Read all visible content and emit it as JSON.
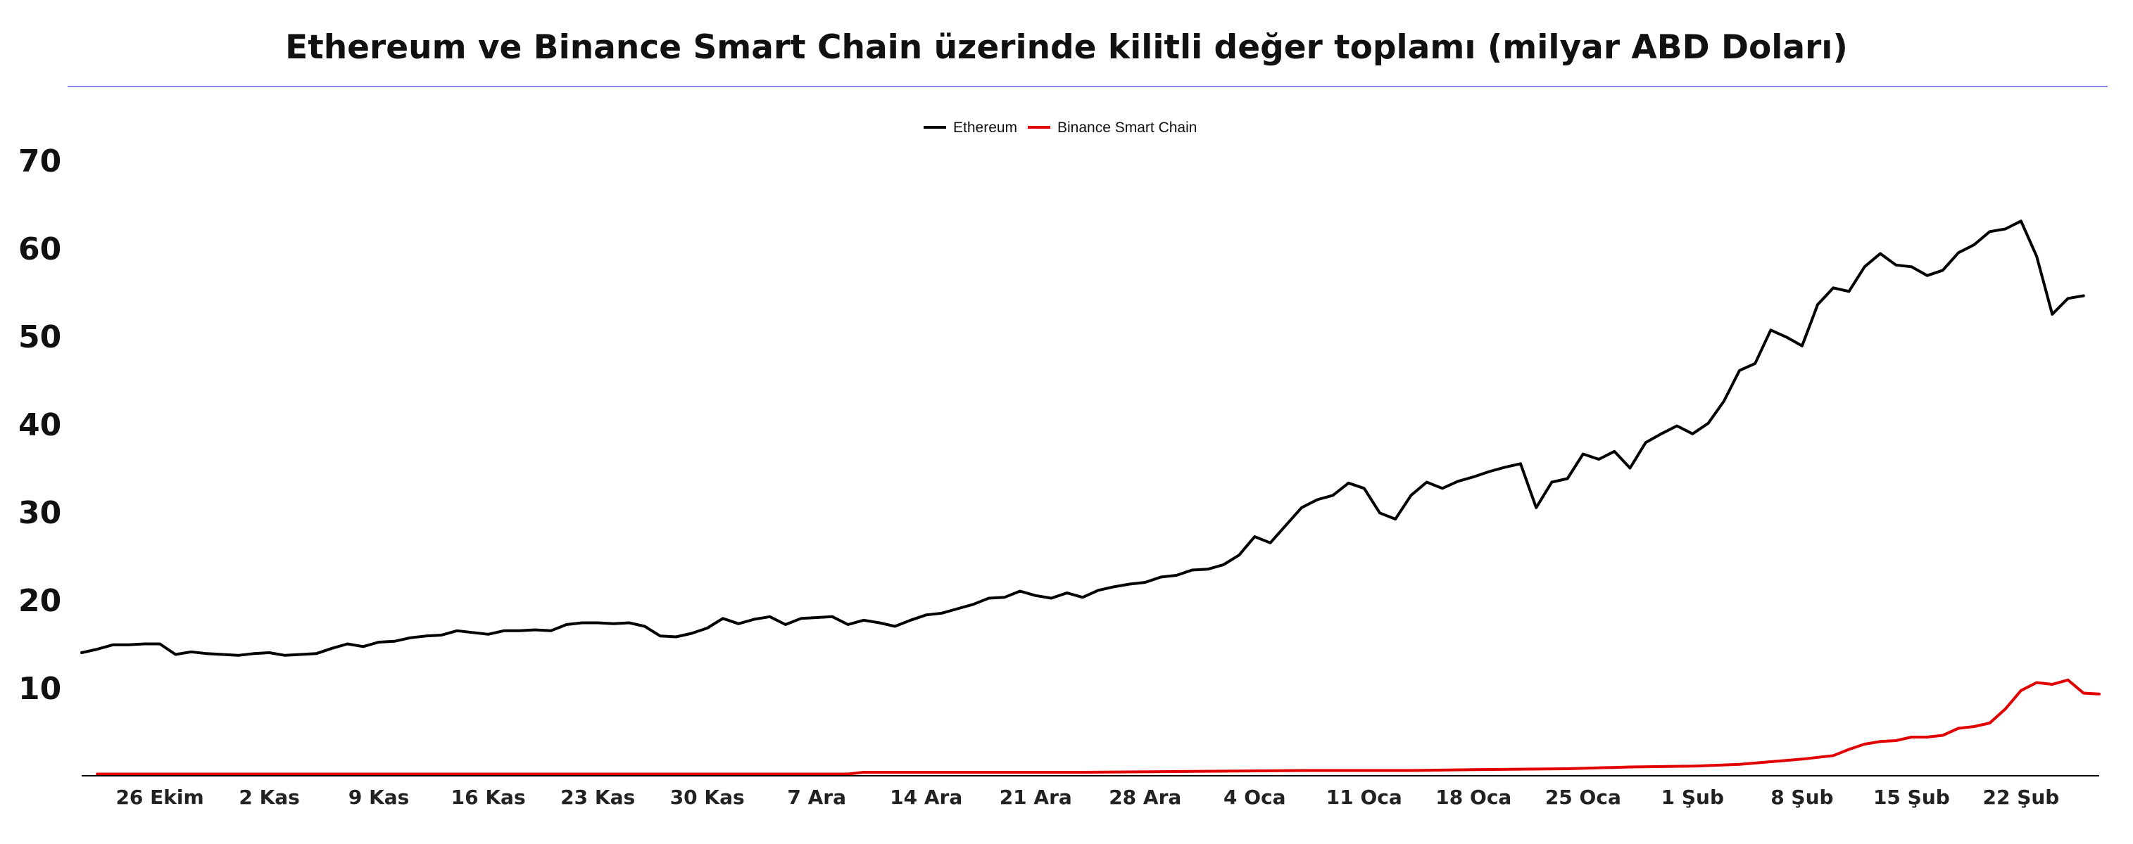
{
  "chart_data": {
    "type": "line",
    "title": "Ethereum ve Binance Smart Chain üzerinde kilitli değer toplamı (milyar ABD Doları)",
    "xlabel": "",
    "ylabel": "",
    "ylim": [
      0,
      70
    ],
    "yticks": [
      10,
      20,
      30,
      40,
      50,
      60,
      70
    ],
    "grid": false,
    "legend_position": "top-center",
    "x_start": "2020-10-21",
    "x_end": "2021-02-27",
    "xticks": [
      {
        "date": "2020-10-26",
        "label": "26 Ekim"
      },
      {
        "date": "2020-11-02",
        "label": "2 Kas"
      },
      {
        "date": "2020-11-09",
        "label": "9 Kas"
      },
      {
        "date": "2020-11-16",
        "label": "16 Kas"
      },
      {
        "date": "2020-11-23",
        "label": "23 Kas"
      },
      {
        "date": "2020-11-30",
        "label": "30 Kas"
      },
      {
        "date": "2020-12-07",
        "label": "7 Ara"
      },
      {
        "date": "2020-12-14",
        "label": "14 Ara"
      },
      {
        "date": "2020-12-21",
        "label": "21 Ara"
      },
      {
        "date": "2020-12-28",
        "label": "28 Ara"
      },
      {
        "date": "2021-01-04",
        "label": "4 Oca"
      },
      {
        "date": "2021-01-11",
        "label": "11 Oca"
      },
      {
        "date": "2021-01-18",
        "label": "18 Oca"
      },
      {
        "date": "2021-01-25",
        "label": "25 Oca"
      },
      {
        "date": "2021-02-01",
        "label": "1 Şub"
      },
      {
        "date": "2021-02-08",
        "label": "8 Şub"
      },
      {
        "date": "2021-02-15",
        "label": "15 Şub"
      },
      {
        "date": "2021-02-22",
        "label": "22 Şub"
      }
    ],
    "series": [
      {
        "name": "Ethereum",
        "color": "#000000",
        "points": [
          [
            "2020-10-21",
            14.0
          ],
          [
            "2020-10-22",
            14.4
          ],
          [
            "2020-10-23",
            14.9
          ],
          [
            "2020-10-24",
            14.9
          ],
          [
            "2020-10-25",
            15.0
          ],
          [
            "2020-10-26",
            15.0
          ],
          [
            "2020-10-27",
            13.8
          ],
          [
            "2020-10-28",
            14.1
          ],
          [
            "2020-10-29",
            13.9
          ],
          [
            "2020-10-30",
            13.8
          ],
          [
            "2020-10-31",
            13.7
          ],
          [
            "2020-11-01",
            13.9
          ],
          [
            "2020-11-02",
            14.0
          ],
          [
            "2020-11-03",
            13.7
          ],
          [
            "2020-11-04",
            13.8
          ],
          [
            "2020-11-05",
            13.9
          ],
          [
            "2020-11-06",
            14.5
          ],
          [
            "2020-11-07",
            15.0
          ],
          [
            "2020-11-08",
            14.7
          ],
          [
            "2020-11-09",
            15.2
          ],
          [
            "2020-11-10",
            15.3
          ],
          [
            "2020-11-11",
            15.7
          ],
          [
            "2020-11-12",
            15.9
          ],
          [
            "2020-11-13",
            16.0
          ],
          [
            "2020-11-14",
            16.5
          ],
          [
            "2020-11-15",
            16.3
          ],
          [
            "2020-11-16",
            16.1
          ],
          [
            "2020-11-17",
            16.5
          ],
          [
            "2020-11-18",
            16.5
          ],
          [
            "2020-11-19",
            16.6
          ],
          [
            "2020-11-20",
            16.5
          ],
          [
            "2020-11-21",
            17.2
          ],
          [
            "2020-11-22",
            17.4
          ],
          [
            "2020-11-23",
            17.4
          ],
          [
            "2020-11-24",
            17.3
          ],
          [
            "2020-11-25",
            17.4
          ],
          [
            "2020-11-26",
            17.0
          ],
          [
            "2020-11-27",
            15.9
          ],
          [
            "2020-11-28",
            15.8
          ],
          [
            "2020-11-29",
            16.2
          ],
          [
            "2020-11-30",
            16.8
          ],
          [
            "2020-12-01",
            17.9
          ],
          [
            "2020-12-02",
            17.3
          ],
          [
            "2020-12-03",
            17.8
          ],
          [
            "2020-12-04",
            18.1
          ],
          [
            "2020-12-05",
            17.2
          ],
          [
            "2020-12-06",
            17.9
          ],
          [
            "2020-12-07",
            18.0
          ],
          [
            "2020-12-08",
            18.1
          ],
          [
            "2020-12-09",
            17.2
          ],
          [
            "2020-12-10",
            17.7
          ],
          [
            "2020-12-11",
            17.4
          ],
          [
            "2020-12-12",
            17.0
          ],
          [
            "2020-12-13",
            17.7
          ],
          [
            "2020-12-14",
            18.3
          ],
          [
            "2020-12-15",
            18.5
          ],
          [
            "2020-12-16",
            19.0
          ],
          [
            "2020-12-17",
            19.5
          ],
          [
            "2020-12-18",
            20.2
          ],
          [
            "2020-12-19",
            20.3
          ],
          [
            "2020-12-20",
            21.0
          ],
          [
            "2020-12-21",
            20.5
          ],
          [
            "2020-12-22",
            20.2
          ],
          [
            "2020-12-23",
            20.8
          ],
          [
            "2020-12-24",
            20.3
          ],
          [
            "2020-12-25",
            21.1
          ],
          [
            "2020-12-26",
            21.5
          ],
          [
            "2020-12-27",
            21.8
          ],
          [
            "2020-12-28",
            22.0
          ],
          [
            "2020-12-29",
            22.6
          ],
          [
            "2020-12-30",
            22.8
          ],
          [
            "2020-12-31",
            23.4
          ],
          [
            "2021-01-01",
            23.5
          ],
          [
            "2021-01-02",
            24.0
          ],
          [
            "2021-01-03",
            25.1
          ],
          [
            "2021-01-04",
            27.2
          ],
          [
            "2021-01-05",
            26.5
          ],
          [
            "2021-01-06",
            28.5
          ],
          [
            "2021-01-07",
            30.5
          ],
          [
            "2021-01-08",
            31.4
          ],
          [
            "2021-01-09",
            31.9
          ],
          [
            "2021-01-10",
            33.3
          ],
          [
            "2021-01-11",
            32.7
          ],
          [
            "2021-01-12",
            29.9
          ],
          [
            "2021-01-13",
            29.2
          ],
          [
            "2021-01-14",
            31.9
          ],
          [
            "2021-01-15",
            33.4
          ],
          [
            "2021-01-16",
            32.7
          ],
          [
            "2021-01-17",
            33.5
          ],
          [
            "2021-01-18",
            34.0
          ],
          [
            "2021-01-19",
            34.6
          ],
          [
            "2021-01-20",
            35.1
          ],
          [
            "2021-01-21",
            35.5
          ],
          [
            "2021-01-22",
            30.5
          ],
          [
            "2021-01-23",
            33.4
          ],
          [
            "2021-01-24",
            33.8
          ],
          [
            "2021-01-25",
            36.6
          ],
          [
            "2021-01-26",
            36.0
          ],
          [
            "2021-01-27",
            36.9
          ],
          [
            "2021-01-28",
            35.0
          ],
          [
            "2021-01-29",
            37.9
          ],
          [
            "2021-01-30",
            38.9
          ],
          [
            "2021-01-31",
            39.8
          ],
          [
            "2021-02-01",
            38.9
          ],
          [
            "2021-02-02",
            40.1
          ],
          [
            "2021-02-03",
            42.6
          ],
          [
            "2021-02-04",
            46.1
          ],
          [
            "2021-02-05",
            46.9
          ],
          [
            "2021-02-06",
            50.7
          ],
          [
            "2021-02-07",
            49.9
          ],
          [
            "2021-02-08",
            48.9
          ],
          [
            "2021-02-09",
            53.6
          ],
          [
            "2021-02-10",
            55.5
          ],
          [
            "2021-02-11",
            55.1
          ],
          [
            "2021-02-12",
            57.9
          ],
          [
            "2021-02-13",
            59.4
          ],
          [
            "2021-02-14",
            58.1
          ],
          [
            "2021-02-15",
            57.9
          ],
          [
            "2021-02-16",
            56.9
          ],
          [
            "2021-02-17",
            57.5
          ],
          [
            "2021-02-18",
            59.5
          ],
          [
            "2021-02-19",
            60.4
          ],
          [
            "2021-02-20",
            61.9
          ],
          [
            "2021-02-21",
            62.2
          ],
          [
            "2021-02-22",
            63.1
          ],
          [
            "2021-02-23",
            59.1
          ],
          [
            "2021-02-24",
            52.5
          ],
          [
            "2021-02-25",
            54.3
          ],
          [
            "2021-02-26",
            54.6
          ]
        ]
      },
      {
        "name": "Binance Smart Chain",
        "color": "#e00000",
        "points": [
          [
            "2020-10-22",
            0.2
          ],
          [
            "2020-11-12",
            0.2
          ],
          [
            "2020-12-09",
            0.2
          ],
          [
            "2020-12-10",
            0.4
          ],
          [
            "2020-12-24",
            0.4
          ],
          [
            "2020-12-31",
            0.5
          ],
          [
            "2021-01-07",
            0.6
          ],
          [
            "2021-01-14",
            0.6
          ],
          [
            "2021-01-18",
            0.7
          ],
          [
            "2021-01-24",
            0.8
          ],
          [
            "2021-01-28",
            1.0
          ],
          [
            "2021-02-01",
            1.1
          ],
          [
            "2021-02-04",
            1.3
          ],
          [
            "2021-02-06",
            1.6
          ],
          [
            "2021-02-08",
            1.9
          ],
          [
            "2021-02-10",
            2.3
          ],
          [
            "2021-02-11",
            3.0
          ],
          [
            "2021-02-12",
            3.6
          ],
          [
            "2021-02-13",
            3.9
          ],
          [
            "2021-02-14",
            4.0
          ],
          [
            "2021-02-15",
            4.4
          ],
          [
            "2021-02-16",
            4.4
          ],
          [
            "2021-02-17",
            4.6
          ],
          [
            "2021-02-18",
            5.4
          ],
          [
            "2021-02-19",
            5.6
          ],
          [
            "2021-02-20",
            6.0
          ],
          [
            "2021-02-21",
            7.6
          ],
          [
            "2021-02-22",
            9.7
          ],
          [
            "2021-02-23",
            10.6
          ],
          [
            "2021-02-24",
            10.4
          ],
          [
            "2021-02-25",
            10.9
          ],
          [
            "2021-02-26",
            9.4
          ],
          [
            "2021-02-27",
            9.3
          ]
        ]
      }
    ]
  }
}
